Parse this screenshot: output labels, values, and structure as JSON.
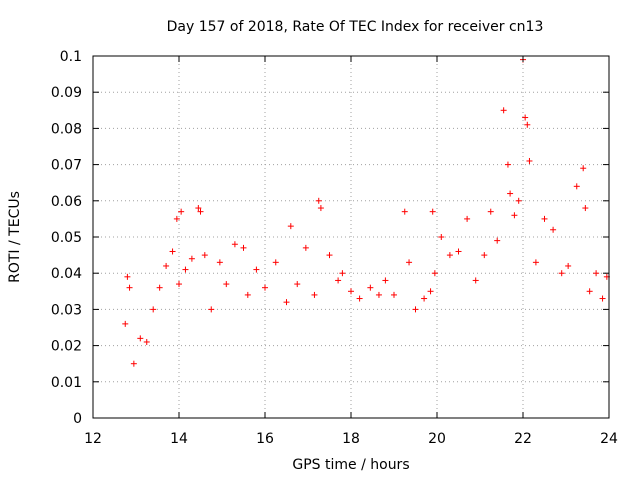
{
  "chart_data": {
    "type": "scatter",
    "title": "Day 157 of 2018, Rate Of TEC Index for receiver cn13",
    "xlabel": "GPS time / hours",
    "ylabel": "ROTI / TECUs",
    "xlim": [
      12,
      24
    ],
    "ylim": [
      0,
      0.1
    ],
    "x_ticks": [
      "12",
      "14",
      "16",
      "18",
      "20",
      "22",
      "24"
    ],
    "y_ticks": [
      "0",
      "0.01",
      "0.02",
      "0.03",
      "0.04",
      "0.05",
      "0.06",
      "0.07",
      "0.08",
      "0.09",
      "0.1"
    ],
    "grid": true,
    "marker": "plus",
    "series": [
      {
        "name": "ROTI",
        "color": "#ff0000",
        "x": [
          12.75,
          12.8,
          12.85,
          12.95,
          13.1,
          13.25,
          13.4,
          13.55,
          13.7,
          13.85,
          13.95,
          14.0,
          14.05,
          14.15,
          14.3,
          14.45,
          14.5,
          14.6,
          14.75,
          14.95,
          15.1,
          15.3,
          15.5,
          15.6,
          15.8,
          16.0,
          16.25,
          16.5,
          16.6,
          16.75,
          16.95,
          17.15,
          17.25,
          17.3,
          17.5,
          17.7,
          17.8,
          18.0,
          18.2,
          18.45,
          18.65,
          18.8,
          19.0,
          19.25,
          19.35,
          19.5,
          19.7,
          19.85,
          19.9,
          19.95,
          20.1,
          20.3,
          20.5,
          20.7,
          20.9,
          21.1,
          21.25,
          21.4,
          21.55,
          21.65,
          21.7,
          21.8,
          21.9,
          22.0,
          22.05,
          22.1,
          22.15,
          22.3,
          22.5,
          22.7,
          22.9,
          23.05,
          23.25,
          23.4,
          23.45,
          23.55,
          23.7,
          23.85,
          23.95
        ],
        "y": [
          0.026,
          0.039,
          0.036,
          0.015,
          0.022,
          0.021,
          0.03,
          0.036,
          0.042,
          0.046,
          0.055,
          0.037,
          0.057,
          0.041,
          0.044,
          0.058,
          0.057,
          0.045,
          0.03,
          0.043,
          0.037,
          0.048,
          0.047,
          0.034,
          0.041,
          0.036,
          0.043,
          0.032,
          0.053,
          0.037,
          0.047,
          0.034,
          0.06,
          0.058,
          0.045,
          0.038,
          0.04,
          0.035,
          0.033,
          0.036,
          0.034,
          0.038,
          0.034,
          0.057,
          0.043,
          0.03,
          0.033,
          0.035,
          0.057,
          0.04,
          0.05,
          0.045,
          0.046,
          0.055,
          0.038,
          0.045,
          0.057,
          0.049,
          0.085,
          0.07,
          0.062,
          0.056,
          0.06,
          0.099,
          0.083,
          0.081,
          0.071,
          0.043,
          0.055,
          0.052,
          0.04,
          0.042,
          0.064,
          0.069,
          0.058,
          0.035,
          0.04,
          0.033,
          0.039
        ]
      }
    ]
  }
}
